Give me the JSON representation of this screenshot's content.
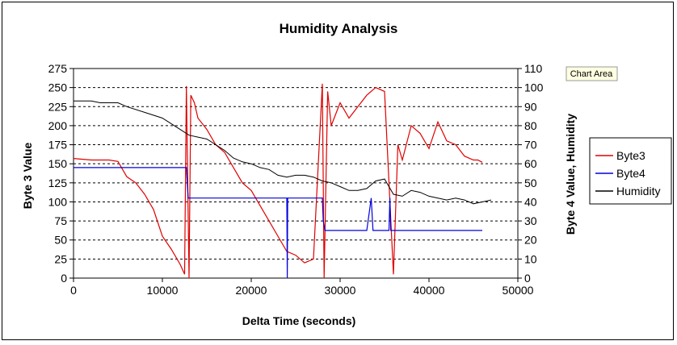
{
  "chart_data": {
    "type": "line",
    "title": "Humidity Analysis",
    "xlabel": "Delta Time (seconds)",
    "ylabel": "Byte 3 Value",
    "y2label": "Byte 4 Value, Humidity",
    "xlim": [
      0,
      50000
    ],
    "ylim": [
      0,
      275
    ],
    "y2lim": [
      0,
      110
    ],
    "xticks": [
      0,
      10000,
      20000,
      30000,
      40000,
      50000
    ],
    "yticks": [
      0,
      25,
      50,
      75,
      100,
      125,
      150,
      175,
      200,
      225,
      250,
      275
    ],
    "y2ticks": [
      0,
      10,
      20,
      30,
      40,
      50,
      60,
      70,
      80,
      90,
      100,
      110
    ],
    "grid": "horizontal-dashed",
    "legend_position": "right",
    "tooltip": "Chart Area",
    "series": [
      {
        "name": "Byte3",
        "axis": "left",
        "color": "#e00000",
        "points": [
          [
            0,
            157
          ],
          [
            2000,
            155
          ],
          [
            4000,
            155
          ],
          [
            5000,
            153
          ],
          [
            6000,
            133
          ],
          [
            7000,
            125
          ],
          [
            8000,
            110
          ],
          [
            9000,
            90
          ],
          [
            10000,
            55
          ],
          [
            11000,
            38
          ],
          [
            12000,
            18
          ],
          [
            12500,
            5
          ],
          [
            12700,
            252
          ],
          [
            13000,
            0
          ],
          [
            13200,
            240
          ],
          [
            13600,
            230
          ],
          [
            14000,
            210
          ],
          [
            15000,
            195
          ],
          [
            16000,
            175
          ],
          [
            17000,
            165
          ],
          [
            18000,
            145
          ],
          [
            19000,
            125
          ],
          [
            20000,
            115
          ],
          [
            21000,
            95
          ],
          [
            22000,
            75
          ],
          [
            23000,
            55
          ],
          [
            24000,
            35
          ],
          [
            25000,
            30
          ],
          [
            26000,
            20
          ],
          [
            27000,
            25
          ],
          [
            28000,
            255
          ],
          [
            28200,
            0
          ],
          [
            28600,
            245
          ],
          [
            29000,
            200
          ],
          [
            30000,
            230
          ],
          [
            31000,
            210
          ],
          [
            32000,
            225
          ],
          [
            33000,
            240
          ],
          [
            34000,
            250
          ],
          [
            35000,
            245
          ],
          [
            36000,
            5
          ],
          [
            36500,
            175
          ],
          [
            37000,
            155
          ],
          [
            38000,
            200
          ],
          [
            39000,
            190
          ],
          [
            40000,
            170
          ],
          [
            41000,
            205
          ],
          [
            42000,
            180
          ],
          [
            43000,
            175
          ],
          [
            44000,
            160
          ],
          [
            45000,
            155
          ],
          [
            45500,
            155
          ],
          [
            46000,
            152
          ]
        ]
      },
      {
        "name": "Byte4",
        "axis": "right",
        "color": "#0000dd",
        "points": [
          [
            0,
            58
          ],
          [
            5000,
            58
          ],
          [
            10000,
            58
          ],
          [
            12700,
            58
          ],
          [
            12900,
            42
          ],
          [
            15000,
            42
          ],
          [
            20000,
            42
          ],
          [
            24000,
            42
          ],
          [
            24050,
            0
          ],
          [
            24100,
            42
          ],
          [
            28000,
            42
          ],
          [
            28100,
            30
          ],
          [
            28300,
            25
          ],
          [
            30000,
            25
          ],
          [
            33000,
            25
          ],
          [
            33500,
            42
          ],
          [
            33700,
            25
          ],
          [
            35500,
            25
          ],
          [
            35600,
            42
          ],
          [
            35700,
            25
          ],
          [
            40000,
            25
          ],
          [
            46000,
            25
          ]
        ]
      },
      {
        "name": "Humidity",
        "axis": "right",
        "color": "#000000",
        "points": [
          [
            0,
            93
          ],
          [
            2000,
            93
          ],
          [
            3000,
            92
          ],
          [
            5000,
            92
          ],
          [
            6000,
            90
          ],
          [
            8000,
            87
          ],
          [
            10000,
            84
          ],
          [
            12000,
            78
          ],
          [
            13000,
            75
          ],
          [
            14000,
            74
          ],
          [
            15000,
            73
          ],
          [
            16000,
            70
          ],
          [
            17000,
            67
          ],
          [
            18000,
            63
          ],
          [
            19000,
            61
          ],
          [
            20000,
            60
          ],
          [
            21000,
            58
          ],
          [
            22000,
            57
          ],
          [
            23000,
            54
          ],
          [
            24000,
            53
          ],
          [
            25000,
            54
          ],
          [
            26000,
            54
          ],
          [
            27000,
            53
          ],
          [
            28000,
            51
          ],
          [
            29000,
            50
          ],
          [
            30000,
            48
          ],
          [
            31000,
            46
          ],
          [
            32000,
            46
          ],
          [
            33000,
            47
          ],
          [
            34000,
            51
          ],
          [
            35000,
            52
          ],
          [
            36000,
            44
          ],
          [
            37000,
            43
          ],
          [
            38000,
            46
          ],
          [
            39000,
            45
          ],
          [
            40000,
            43
          ],
          [
            41000,
            42
          ],
          [
            42000,
            41
          ],
          [
            43000,
            42
          ],
          [
            44000,
            41
          ],
          [
            45000,
            39
          ],
          [
            46000,
            40
          ],
          [
            47000,
            41
          ]
        ]
      }
    ]
  }
}
